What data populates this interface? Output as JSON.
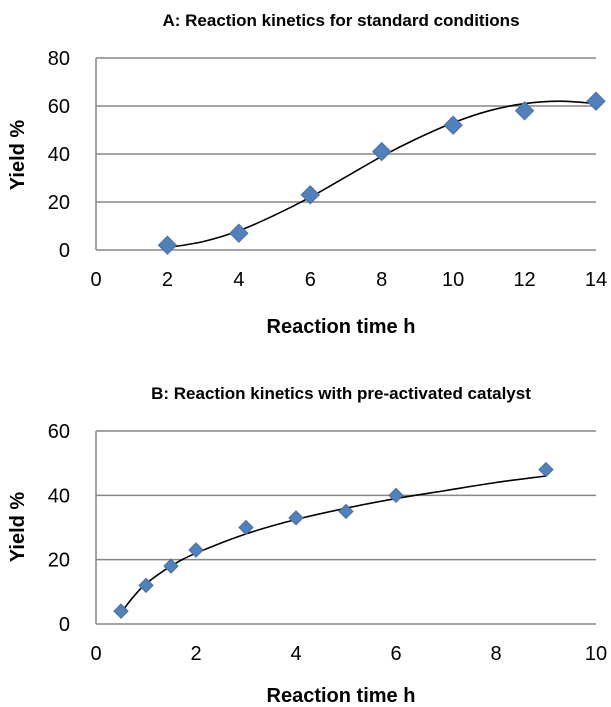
{
  "colors": {
    "marker": "#4f81bd",
    "marker_edge": "#4a6f9c",
    "grid": "#868686",
    "fit_line": "#000000"
  },
  "chart_data": [
    {
      "type": "scatter",
      "title": "A: Reaction kinetics for standard conditions",
      "xlabel": "Reaction time h",
      "ylabel": "Yield %",
      "xlim": [
        0,
        14
      ],
      "ylim": [
        0,
        80
      ],
      "xticks": [
        0,
        2,
        4,
        6,
        8,
        10,
        12,
        14
      ],
      "yticks": [
        0,
        20,
        40,
        60,
        80
      ],
      "grid": "horizontal",
      "legend": "none",
      "marker": "diamond",
      "points": [
        {
          "x": 2,
          "y": 2
        },
        {
          "x": 4,
          "y": 7
        },
        {
          "x": 6,
          "y": 23
        },
        {
          "x": 8,
          "y": 41
        },
        {
          "x": 10,
          "y": 52
        },
        {
          "x": 12,
          "y": 58
        },
        {
          "x": 14,
          "y": 62
        }
      ],
      "fit_curve": [
        {
          "x": 2,
          "y": 1
        },
        {
          "x": 3,
          "y": 3.5
        },
        {
          "x": 4,
          "y": 8
        },
        {
          "x": 5,
          "y": 14.5
        },
        {
          "x": 6,
          "y": 22
        },
        {
          "x": 7,
          "y": 30.5
        },
        {
          "x": 8,
          "y": 39
        },
        {
          "x": 9,
          "y": 46.5
        },
        {
          "x": 10,
          "y": 53
        },
        {
          "x": 11,
          "y": 58
        },
        {
          "x": 12,
          "y": 61
        },
        {
          "x": 13,
          "y": 62
        },
        {
          "x": 14,
          "y": 61
        }
      ]
    },
    {
      "type": "scatter",
      "title": "B: Reaction kinetics with pre-activated catalyst",
      "xlabel": "Reaction time h",
      "ylabel": "Yield %",
      "xlim": [
        0,
        10
      ],
      "ylim": [
        0,
        60
      ],
      "xticks": [
        0,
        2,
        4,
        6,
        8,
        10
      ],
      "yticks": [
        0,
        20,
        40,
        60
      ],
      "grid": "horizontal",
      "legend": "none",
      "marker": "diamond",
      "points": [
        {
          "x": 0.5,
          "y": 4
        },
        {
          "x": 1,
          "y": 12
        },
        {
          "x": 1.5,
          "y": 18
        },
        {
          "x": 2,
          "y": 23
        },
        {
          "x": 3,
          "y": 30
        },
        {
          "x": 4,
          "y": 33
        },
        {
          "x": 5,
          "y": 35
        },
        {
          "x": 6,
          "y": 40
        },
        {
          "x": 9,
          "y": 48
        }
      ],
      "fit_curve": [
        {
          "x": 0.5,
          "y": 3.5
        },
        {
          "x": 0.75,
          "y": 8.5
        },
        {
          "x": 1,
          "y": 12.5
        },
        {
          "x": 1.5,
          "y": 18
        },
        {
          "x": 2,
          "y": 22
        },
        {
          "x": 3,
          "y": 28
        },
        {
          "x": 4,
          "y": 32.5
        },
        {
          "x": 5,
          "y": 36
        },
        {
          "x": 6,
          "y": 39
        },
        {
          "x": 7,
          "y": 41.5
        },
        {
          "x": 8,
          "y": 44
        },
        {
          "x": 9,
          "y": 46
        }
      ]
    }
  ]
}
